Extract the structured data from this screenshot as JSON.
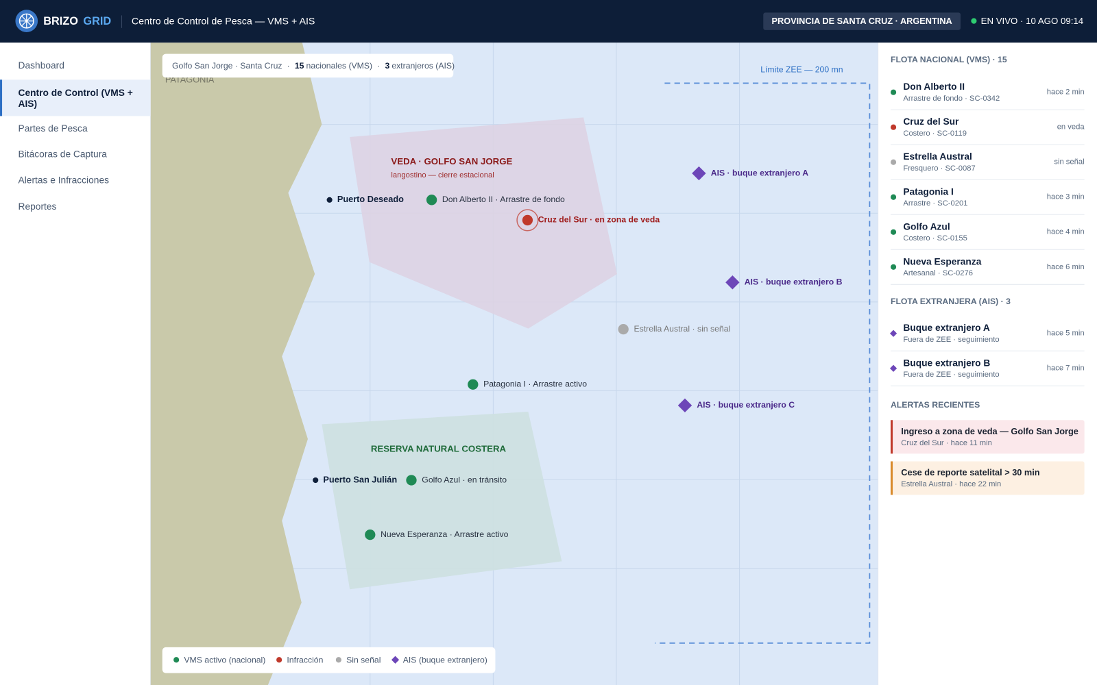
{
  "header": {
    "brand_a": "BRIZO",
    "brand_b": "GRID",
    "title": "Centro de Control de Pesca — VMS + AIS",
    "region": "PROVINCIA DE SANTA CRUZ · ARGENTINA",
    "status": "EN VIVO · 10 AGO 09:14"
  },
  "nav": {
    "items": [
      "Dashboard",
      "Centro de Control (VMS + AIS)",
      "Partes de Pesca",
      "Bitácoras de Captura",
      "Alertas e Infracciones",
      "Reportes"
    ],
    "active": 1
  },
  "map": {
    "summary": {
      "place": "Golfo San Jorge · Santa Cruz",
      "separator": "·",
      "national_count": 15,
      "national_label": "nacionales (VMS)",
      "foreign_count": 3,
      "foreign_label": "extranjeros (AIS)"
    },
    "land_label": "PATAGONIA",
    "eez_label": "Límite ZEE — 200 mn",
    "zones": [
      {
        "title": "VEDA · GOLFO SAN JORGE",
        "subtitle": "langostino — cierre estacional"
      },
      {
        "title": "RESERVA NATURAL COSTERA"
      }
    ],
    "ports": [
      "Puerto Deseado",
      "Puerto San Julián"
    ],
    "vessels": [
      {
        "label": "Don Alberto II · Arrastre de fondo",
        "color": "#1f8a55"
      },
      {
        "label": "Cruz del Sur · en zona de veda",
        "color": "#c0392b",
        "alert": true
      },
      {
        "label": "Estrella Austral · sin señal",
        "color": "#aaaaaa"
      },
      {
        "label": "Patagonia I · Arrastre activo",
        "color": "#1f8a55"
      },
      {
        "label": "Golfo Azul · en tránsito",
        "color": "#1f8a55"
      },
      {
        "label": "Nueva Esperanza · Arrastre activo",
        "color": "#1f8a55"
      }
    ],
    "ais_targets": [
      "AIS · buque extranjero A",
      "AIS · buque extranjero B",
      "AIS · buque extranjero C"
    ],
    "legend": [
      {
        "label": "VMS activo (nacional)",
        "color": "#1f8a55",
        "shape": "circle"
      },
      {
        "label": "Infracción",
        "color": "#c0392b",
        "shape": "circle"
      },
      {
        "label": "Sin señal",
        "color": "#aaaaaa",
        "shape": "circle"
      },
      {
        "label": "AIS (buque extranjero)",
        "color": "#6d46b8",
        "shape": "diamond"
      }
    ]
  },
  "panel": {
    "national_heading": "FLOTA NACIONAL (VMS) · 15",
    "national": [
      {
        "name": "Don Alberto II",
        "detail": "Arrastre de fondo · SC-0342",
        "time": "hace 2 min",
        "color": "#1f8a55"
      },
      {
        "name": "Cruz del Sur",
        "detail": "Costero · SC-0119",
        "time": "en veda",
        "color": "#c0392b"
      },
      {
        "name": "Estrella Austral",
        "detail": "Fresquero · SC-0087",
        "time": "sin señal",
        "color": "#aaaaaa"
      },
      {
        "name": "Patagonia I",
        "detail": "Arrastre · SC-0201",
        "time": "hace 3 min",
        "color": "#1f8a55"
      },
      {
        "name": "Golfo Azul",
        "detail": "Costero · SC-0155",
        "time": "hace 4 min",
        "color": "#1f8a55"
      },
      {
        "name": "Nueva Esperanza",
        "detail": "Artesanal · SC-0276",
        "time": "hace 6 min",
        "color": "#1f8a55"
      }
    ],
    "foreign_heading": "FLOTA EXTRANJERA (AIS) · 3",
    "foreign": [
      {
        "name": "Buque extranjero A",
        "detail": "Fuera de ZEE · seguimiento",
        "time": "hace 5 min"
      },
      {
        "name": "Buque extranjero B",
        "detail": "Fuera de ZEE · seguimiento",
        "time": "hace 7 min"
      }
    ],
    "alerts_heading": "ALERTAS RECIENTES",
    "alerts": [
      {
        "title": "Ingreso a zona de veda — Golfo San Jorge",
        "detail": "Cruz del Sur · hace 11 min",
        "color": "#c0392b",
        "background": "#fbe8eb"
      },
      {
        "title": "Cese de reporte satelital > 30 min",
        "detail": "Estrella Austral · hace 22 min",
        "color": "#d98a2b",
        "background": "#fdf0e2"
      }
    ]
  }
}
